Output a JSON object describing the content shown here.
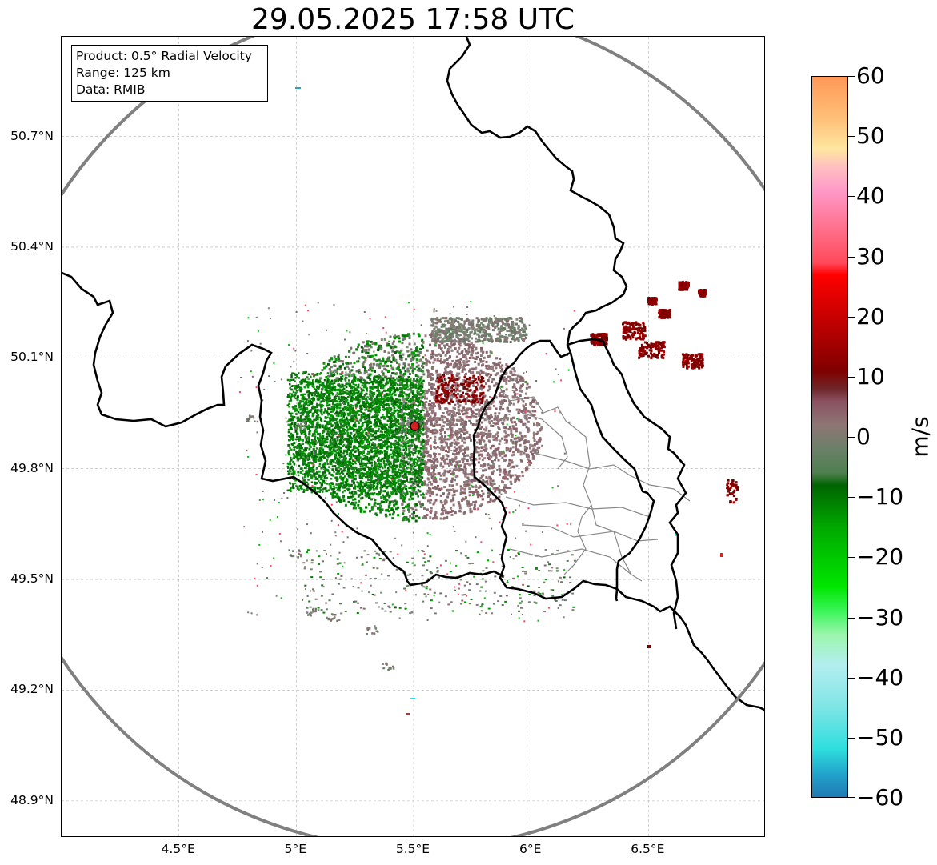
{
  "title": "29.05.2025 17:58 UTC",
  "info": {
    "product": "Product: 0.5° Radial Velocity",
    "range": "Range: 125 km",
    "data": "Data: RMIB"
  },
  "map": {
    "lon_range": [
      4.0,
      7.0
    ],
    "lat_range": [
      48.8,
      50.97
    ],
    "radar_site": {
      "lon": 5.505,
      "lat": 49.915,
      "color": "#d42020"
    },
    "range_ring_color": "#808080",
    "border_color": "#000000",
    "province_color": "#888888",
    "lat_ticks": [
      {
        "value": 50.7,
        "label": "50.7°N"
      },
      {
        "value": 50.4,
        "label": "50.4°N"
      },
      {
        "value": 50.1,
        "label": "50.1°N"
      },
      {
        "value": 49.8,
        "label": "49.8°N"
      },
      {
        "value": 49.5,
        "label": "49.5°N"
      },
      {
        "value": 49.2,
        "label": "49.2°N"
      },
      {
        "value": 48.9,
        "label": "48.9°N"
      }
    ],
    "lon_ticks": [
      {
        "value": 4.5,
        "label": "4.5°E"
      },
      {
        "value": 5.0,
        "label": "5°E"
      },
      {
        "value": 5.5,
        "label": "5.5°E"
      },
      {
        "value": 6.0,
        "label": "6°E"
      },
      {
        "value": 6.5,
        "label": "6.5°E"
      }
    ]
  },
  "colorbar": {
    "unit": "m/s",
    "min": -60,
    "max": 60,
    "ticks": [
      {
        "value": 60,
        "label": "60"
      },
      {
        "value": 50,
        "label": "50"
      },
      {
        "value": 40,
        "label": "40"
      },
      {
        "value": 30,
        "label": "30"
      },
      {
        "value": 20,
        "label": "20"
      },
      {
        "value": 10,
        "label": "10"
      },
      {
        "value": 0,
        "label": "0"
      },
      {
        "value": -10,
        "label": "−10"
      },
      {
        "value": -20,
        "label": "−20"
      },
      {
        "value": -30,
        "label": "−30"
      },
      {
        "value": -40,
        "label": "−40"
      },
      {
        "value": -50,
        "label": "−50"
      },
      {
        "value": -60,
        "label": "−60"
      }
    ],
    "stops": [
      {
        "v": -60,
        "c": "#1f78b4"
      },
      {
        "v": -56,
        "c": "#22a5cc"
      },
      {
        "v": -52,
        "c": "#2edede"
      },
      {
        "v": -45,
        "c": "#7fe5e5"
      },
      {
        "v": -38,
        "c": "#b3eef0"
      },
      {
        "v": -33,
        "c": "#9cf5ae"
      },
      {
        "v": -29,
        "c": "#3bf55a"
      },
      {
        "v": -25,
        "c": "#00e600"
      },
      {
        "v": -15,
        "c": "#00a800"
      },
      {
        "v": -8,
        "c": "#006400"
      },
      {
        "v": -6,
        "c": "#4f7f4f"
      },
      {
        "v": -2,
        "c": "#6b8068"
      },
      {
        "v": 2,
        "c": "#8e7675"
      },
      {
        "v": 6,
        "c": "#8a5060"
      },
      {
        "v": 8,
        "c": "#6e2628"
      },
      {
        "v": 11,
        "c": "#800000"
      },
      {
        "v": 20,
        "c": "#c80000"
      },
      {
        "v": 27,
        "c": "#ff0000"
      },
      {
        "v": 29,
        "c": "#ff4a5a"
      },
      {
        "v": 36,
        "c": "#ff7898"
      },
      {
        "v": 41,
        "c": "#ff99c8"
      },
      {
        "v": 45,
        "c": "#ffc0c0"
      },
      {
        "v": 48,
        "c": "#ffe6a0"
      },
      {
        "v": 53,
        "c": "#ffc078"
      },
      {
        "v": 60,
        "c": "#ff9858"
      }
    ]
  }
}
